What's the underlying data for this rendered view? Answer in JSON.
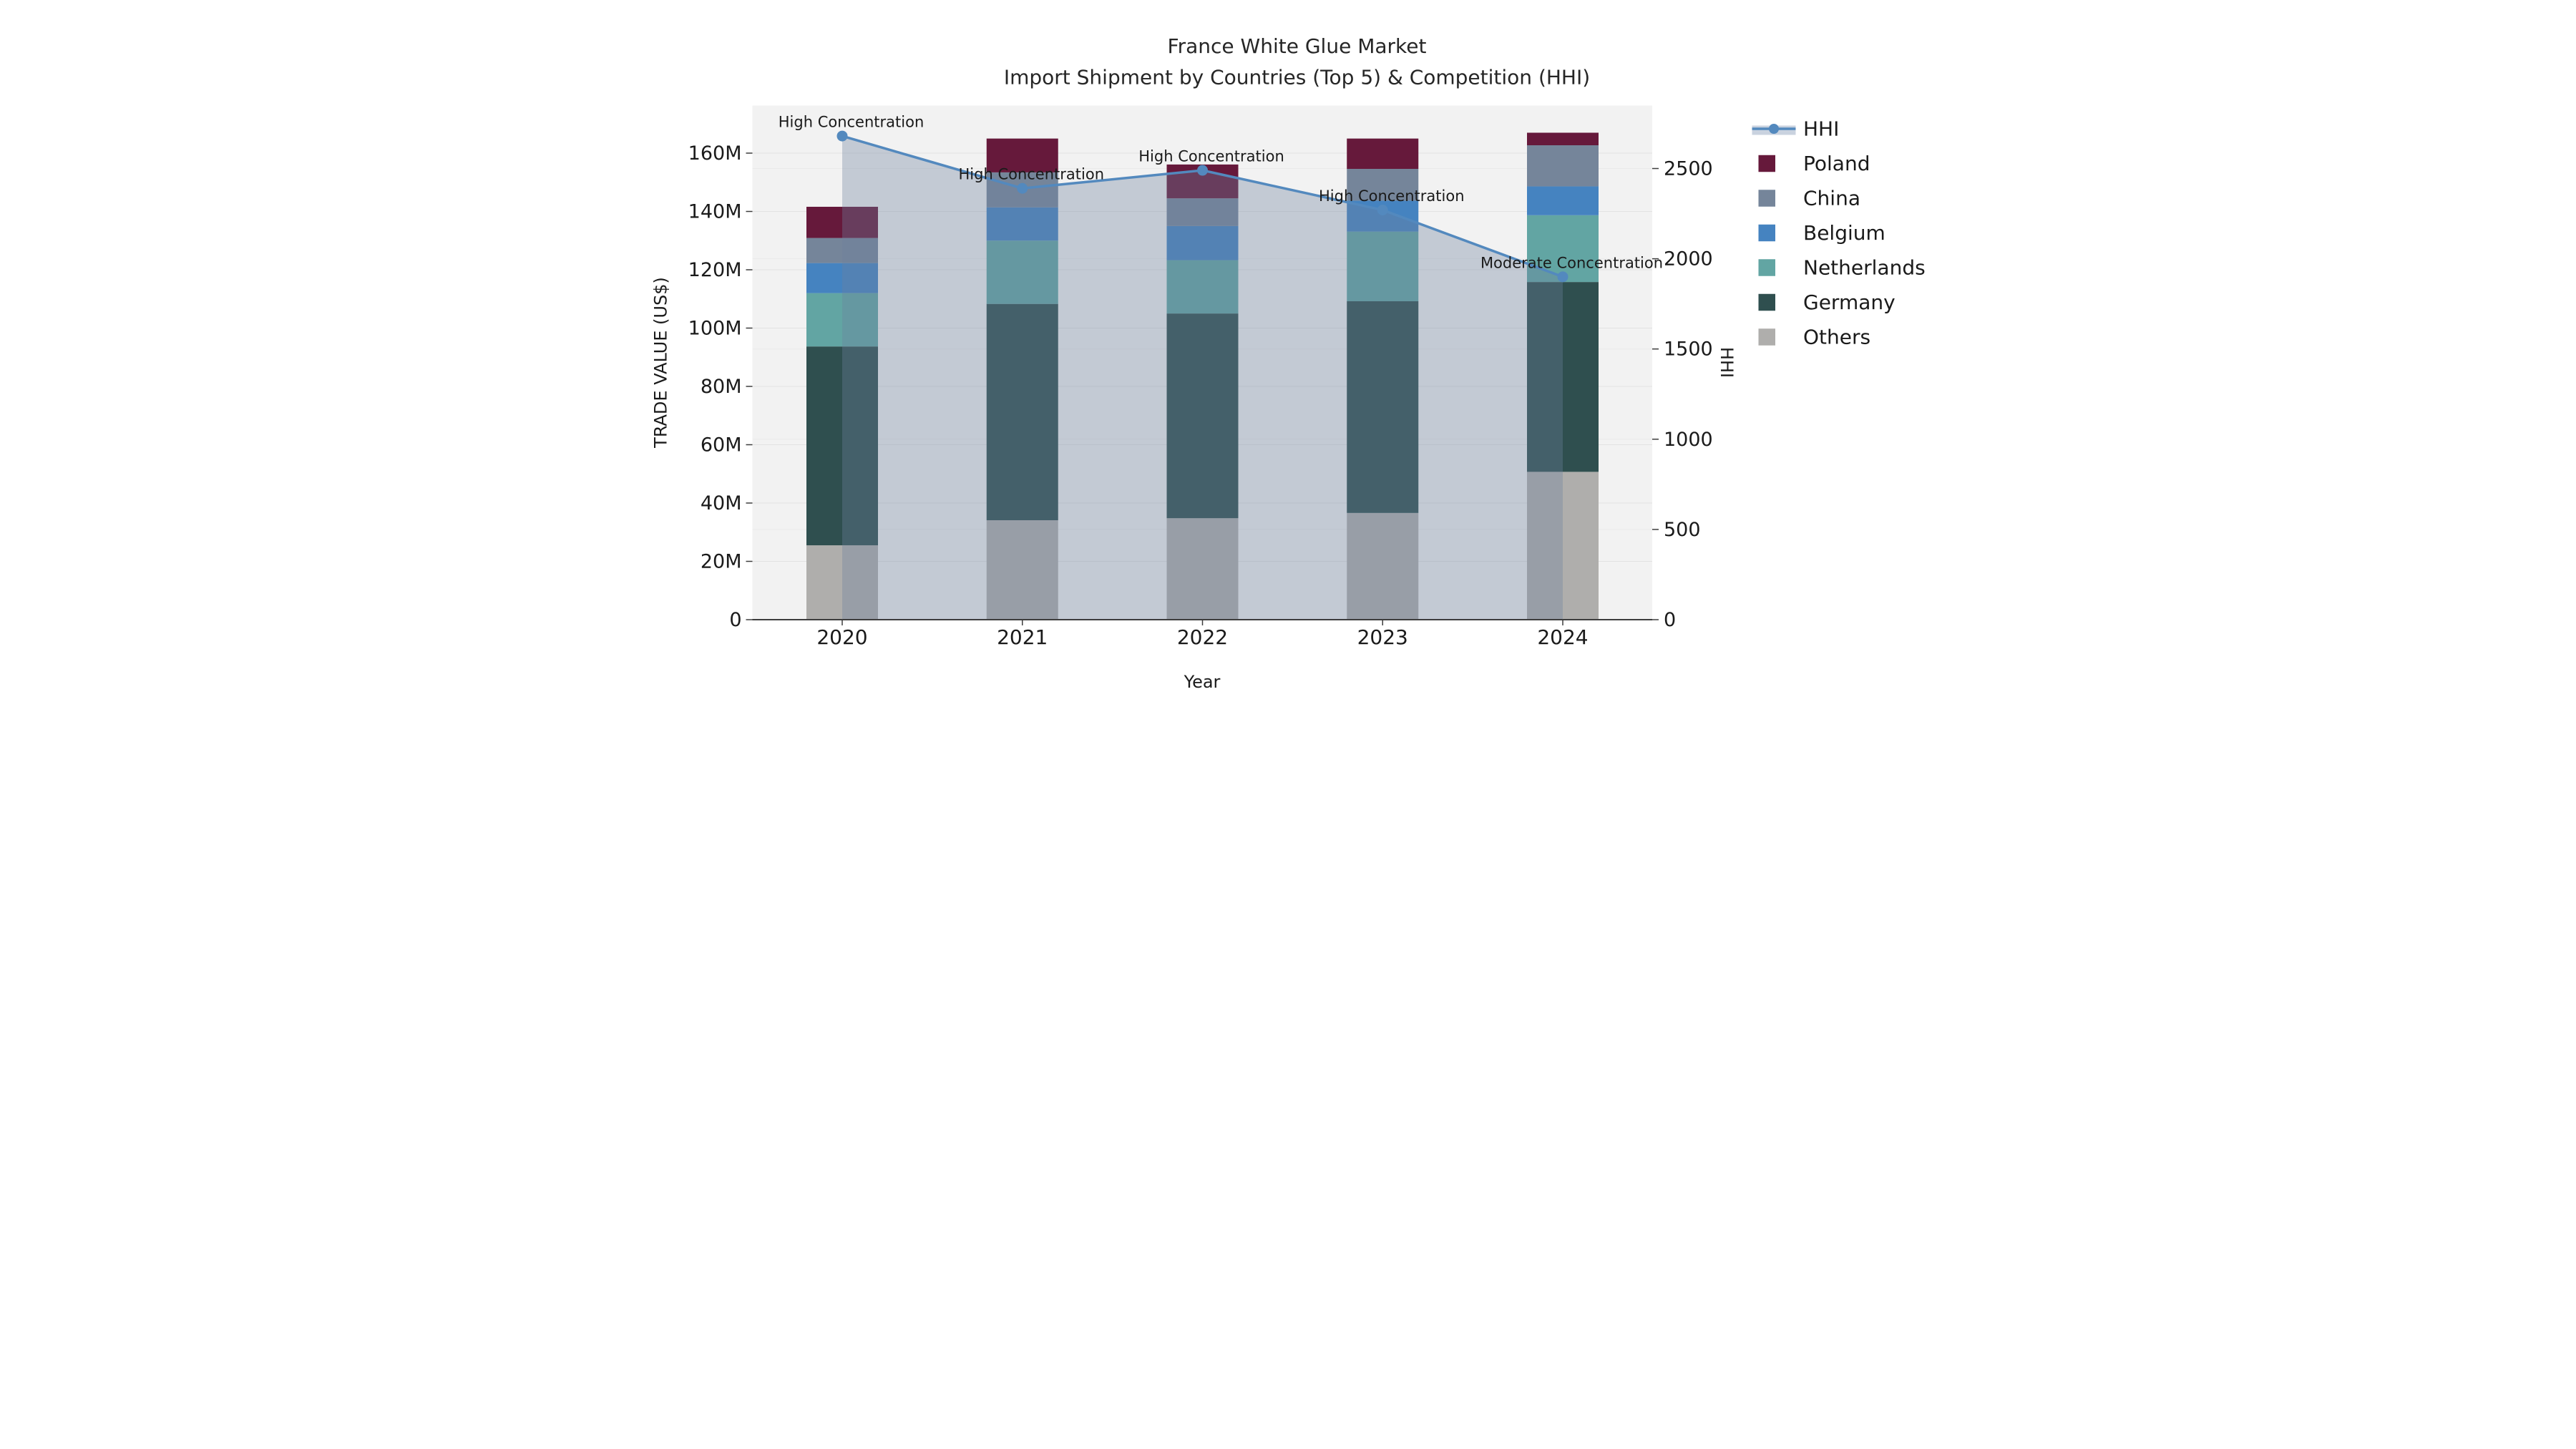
{
  "figure": {
    "title_line1": "France White Glue Market",
    "title_line2": "Import Shipment by Countries (Top 5) & Competition (HHI)"
  },
  "chart_data": {
    "type": "bar",
    "stacked": true,
    "grid": true,
    "categories": [
      "2020",
      "2021",
      "2022",
      "2023",
      "2024"
    ],
    "xlabel": "Year",
    "ylabel_left": "TRADE VALUE (US$)",
    "ylabel_right": "HHI",
    "ylim_left_million_usd": [
      0,
      176
    ],
    "ylim_right_hhi": [
      0,
      2850
    ],
    "yticks_left": [
      {
        "value": 0,
        "label": "0"
      },
      {
        "value": 20,
        "label": "20M"
      },
      {
        "value": 40,
        "label": "40M"
      },
      {
        "value": 60,
        "label": "60M"
      },
      {
        "value": 80,
        "label": "80M"
      },
      {
        "value": 100,
        "label": "100M"
      },
      {
        "value": 120,
        "label": "120M"
      },
      {
        "value": 140,
        "label": "140M"
      },
      {
        "value": 160,
        "label": "160M"
      }
    ],
    "yticks_right": [
      {
        "value": 0,
        "label": "0"
      },
      {
        "value": 500,
        "label": "500"
      },
      {
        "value": 1000,
        "label": "1000"
      },
      {
        "value": 1500,
        "label": "1500"
      },
      {
        "value": 2000,
        "label": "2000"
      },
      {
        "value": 2500,
        "label": "2500"
      }
    ],
    "bar_series_bottom_to_top": [
      {
        "name": "Others",
        "color": "#AFAEAC",
        "values_million_usd": [
          25.5,
          34.1,
          34.8,
          36.6,
          50.7
        ]
      },
      {
        "name": "Germany",
        "color": "#2F4F4F",
        "values_million_usd": [
          68.2,
          74.2,
          70.2,
          72.6,
          65.1
        ]
      },
      {
        "name": "Netherlands",
        "color": "#62A5A3",
        "values_million_usd": [
          18.3,
          21.7,
          18.3,
          23.9,
          22.9
        ]
      },
      {
        "name": "Belgium",
        "color": "#4583C0",
        "values_million_usd": [
          10.3,
          11.4,
          11.7,
          10.6,
          9.9
        ]
      },
      {
        "name": "China",
        "color": "#75859A",
        "values_million_usd": [
          8.6,
          12.0,
          9.5,
          10.9,
          14.1
        ]
      },
      {
        "name": "Poland",
        "color": "#66193B",
        "values_million_usd": [
          10.7,
          11.6,
          11.6,
          10.4,
          4.3
        ]
      }
    ],
    "bar_totals_million_usd": [
      141.6,
      165.0,
      156.1,
      165.0,
      167.0
    ],
    "line_series": {
      "name": "HHI",
      "axis": "right",
      "color": "#5389BE",
      "area_fill": "rgba(110,128,158,0.35)",
      "legend_band_color": "#C9D2DF",
      "values": [
        2680,
        2390,
        2490,
        2270,
        1900
      ]
    },
    "point_annotations": [
      "High Concentration",
      "High Concentration",
      "High Concentration",
      "High Concentration",
      "Moderate Concentration"
    ],
    "legend_top_to_bottom": [
      {
        "label": "HHI",
        "type": "line-area"
      },
      {
        "label": "Poland",
        "type": "patch",
        "color": "#66193B"
      },
      {
        "label": "China",
        "type": "patch",
        "color": "#75859A"
      },
      {
        "label": "Belgium",
        "type": "patch",
        "color": "#4583C0"
      },
      {
        "label": "Netherlands",
        "type": "patch",
        "color": "#62A5A3"
      },
      {
        "label": "Germany",
        "type": "patch",
        "color": "#2F4F4F"
      },
      {
        "label": "Others",
        "type": "patch",
        "color": "#AFAEAC"
      }
    ],
    "plot_background": "#F2F2F2",
    "gridline_color_left": "#E2E2E2",
    "gridline_color_right": "#EAEAEA",
    "axis_line_color": "#3D3D3D",
    "text_color": "#1A1A1A"
  }
}
